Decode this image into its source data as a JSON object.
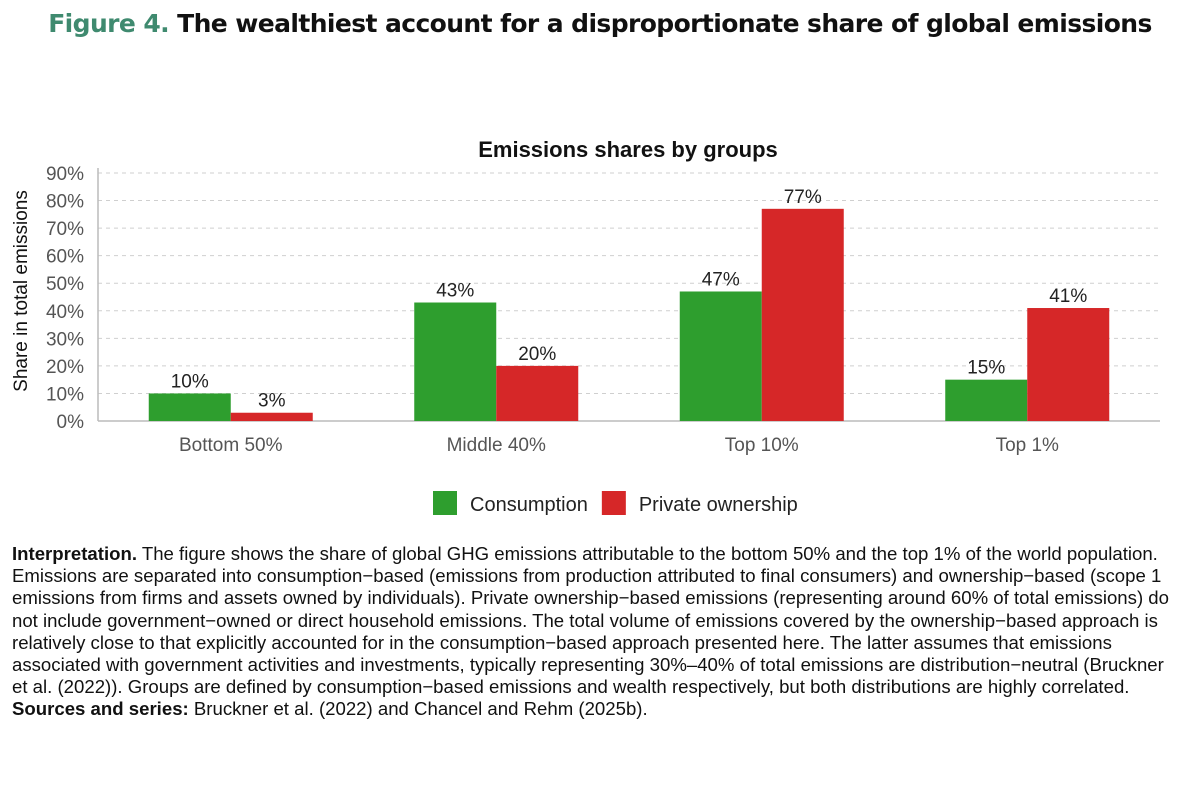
{
  "figure": {
    "label": "Figure 4.",
    "title": "The wealthiest account for a disproportionate share of global emissions"
  },
  "chart_data": {
    "type": "bar",
    "title": "Emissions shares by groups",
    "xlabel": "",
    "ylabel": "Share in total emissions",
    "ylim": [
      0,
      90
    ],
    "yticks": [
      "0%",
      "10%",
      "20%",
      "30%",
      "40%",
      "50%",
      "60%",
      "70%",
      "80%",
      "90%"
    ],
    "grid": true,
    "legend_position": "bottom",
    "categories": [
      "Bottom 50%",
      "Middle 40%",
      "Top 10%",
      "Top 1%"
    ],
    "series": [
      {
        "name": "Consumption",
        "color": "#2e9e2e",
        "values": [
          10,
          43,
          47,
          15
        ],
        "labels": [
          "10%",
          "43%",
          "47%",
          "15%"
        ]
      },
      {
        "name": "Private ownership",
        "color": "#d62728",
        "values": [
          3,
          20,
          77,
          41
        ],
        "labels": [
          "3%",
          "20%",
          "77%",
          "41%"
        ]
      }
    ]
  },
  "caption": {
    "label": "Interpretation.",
    "text": " The figure shows the share of global GHG emissions attributable to the bottom 50% and the top 1% of the world population. Emissions are separated into consumption−based (emissions from production attributed to final consumers) and ownership−based (scope 1 emissions from firms and assets owned by individuals). Private ownership−based emissions (representing around 60% of total emissions) do not include government−owned or direct household emissions. The total volume of emissions covered by the ownership−based approach is relatively close to that explicitly accounted for in the consumption−based approach presented here. The latter assumes that emissions associated with government activities and investments, typically representing 30%–40% of total emissions are distribution−neutral (Bruckner et al. (2022)). Groups are defined by consumption−based emissions and wealth respectively, but both distributions are highly correlated. ",
    "sources_label": "Sources and series:",
    "sources_text": " Bruckner et al. (2022) and Chancel and Rehm (2025b)."
  }
}
